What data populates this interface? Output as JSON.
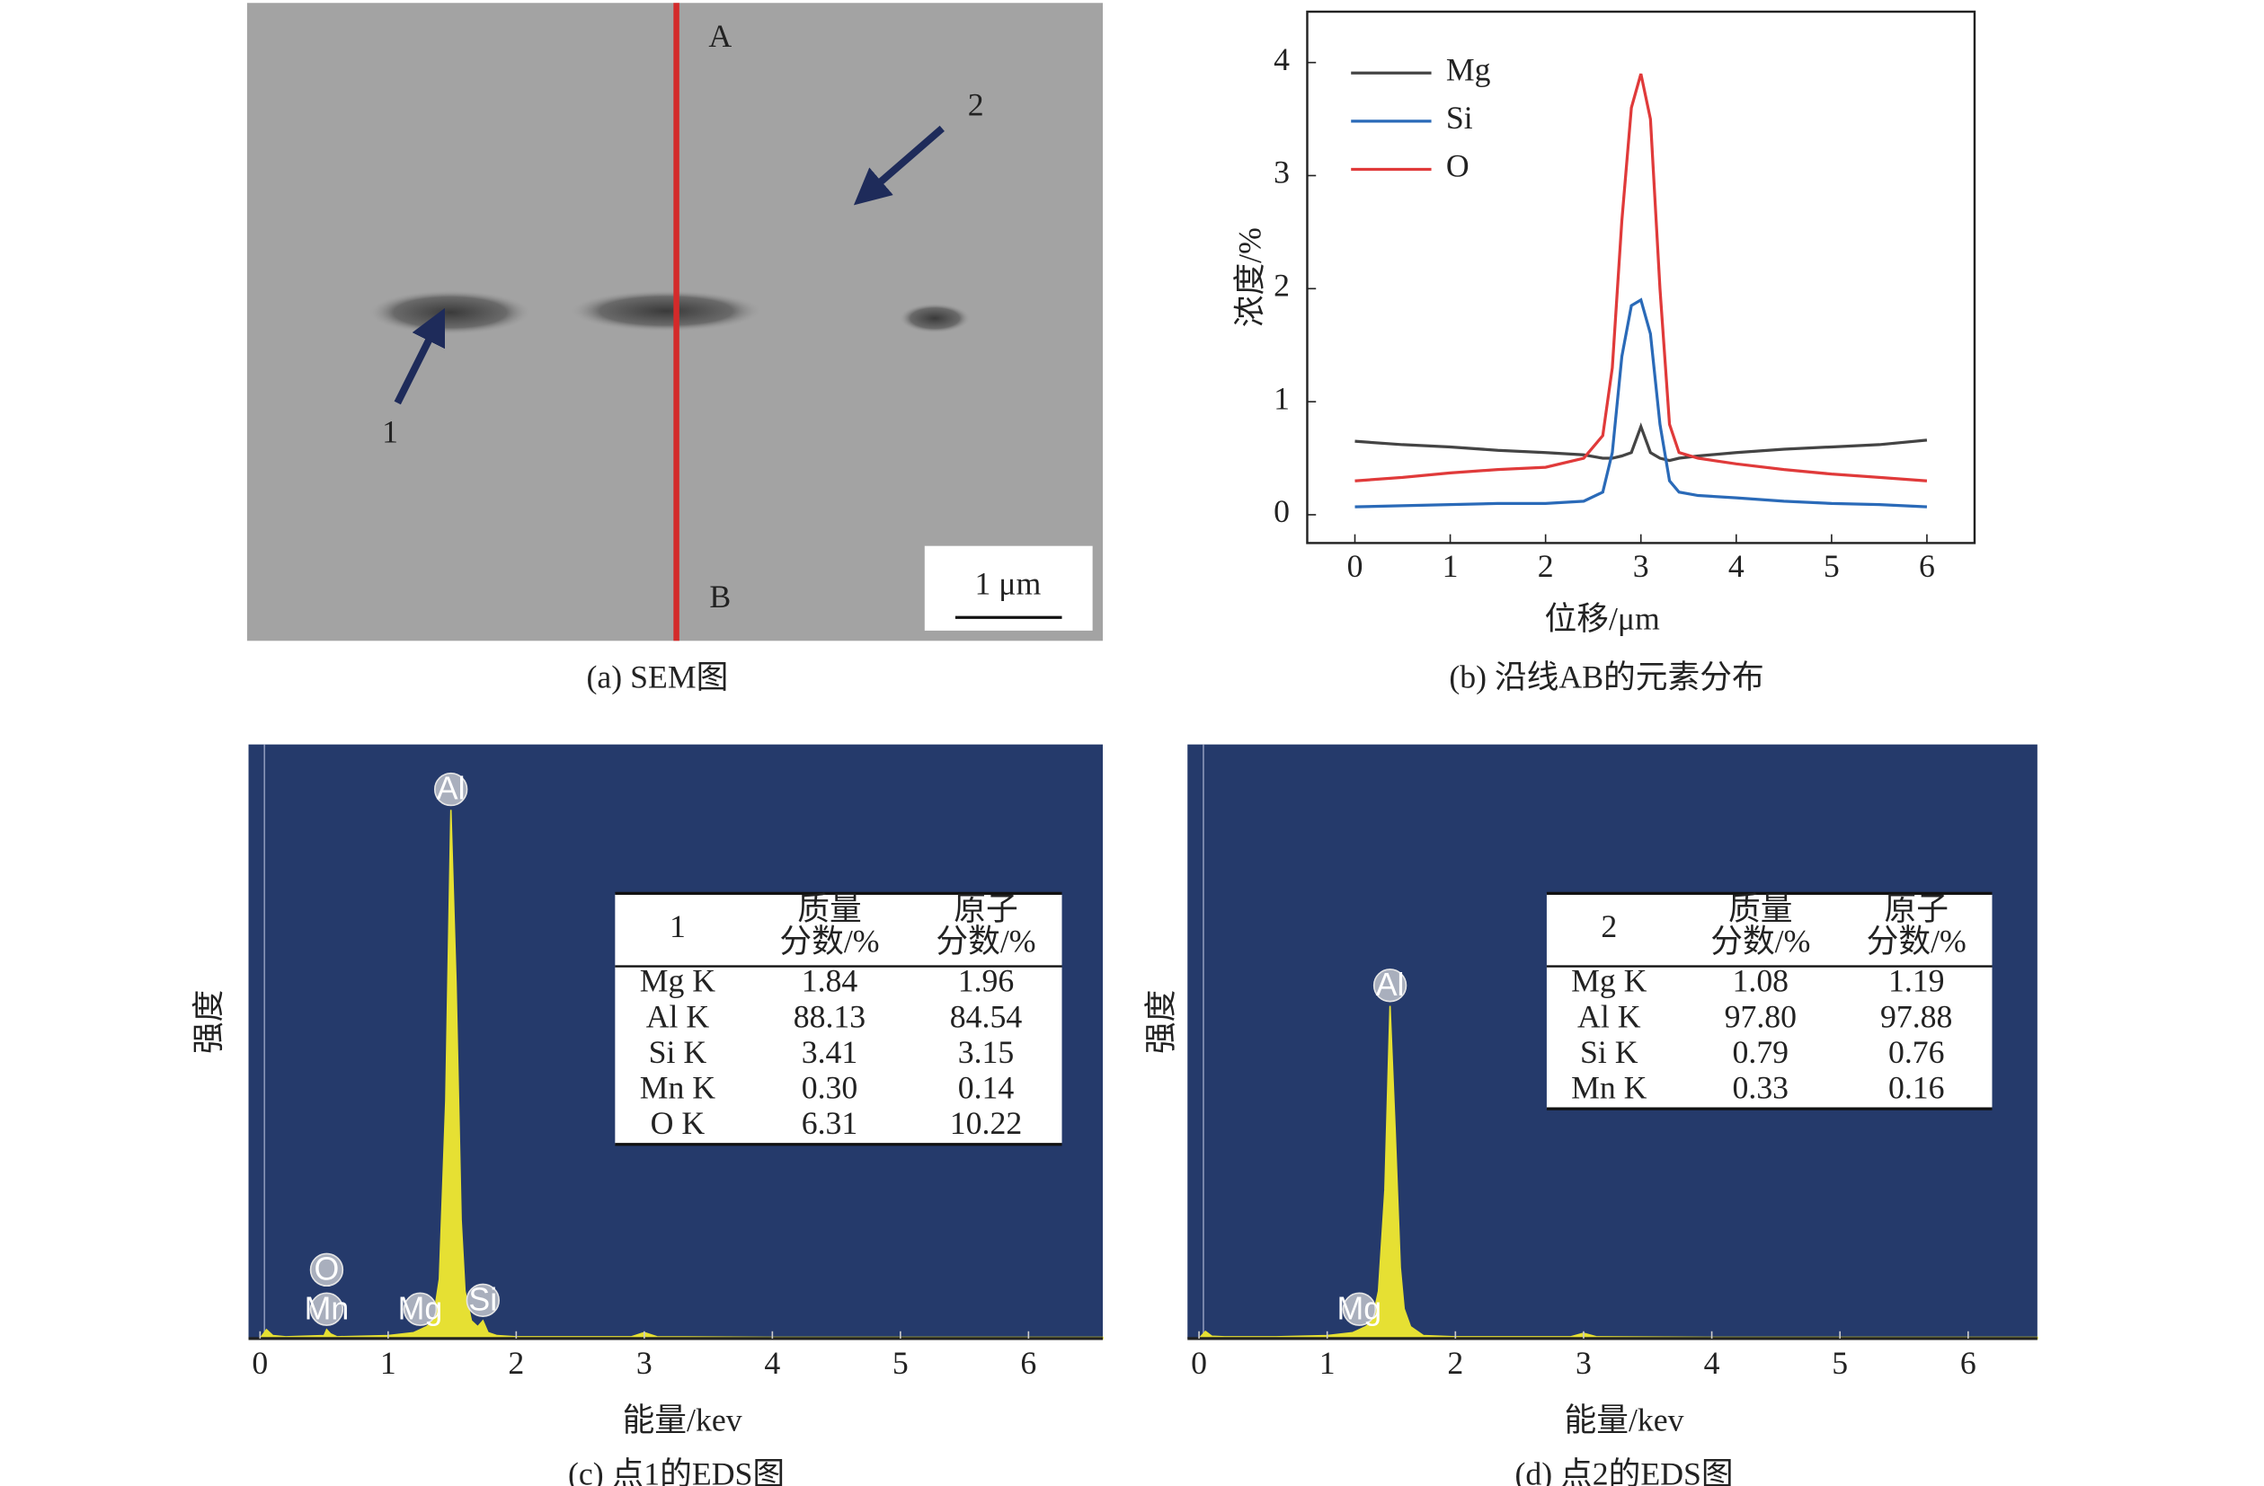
{
  "chart_data": [
    {
      "type": "image",
      "caption": "(a) SEM图",
      "point_labels": [
        "A",
        "B",
        "1",
        "2"
      ],
      "scale_bar": "1 μm"
    },
    {
      "type": "line",
      "caption": "(b) 沿线AB的元素分布",
      "xlabel": "位移/μm",
      "ylabel": "浓度/%",
      "x": [
        0,
        0.5,
        1,
        1.5,
        2,
        2.4,
        2.6,
        2.7,
        2.8,
        2.9,
        3.0,
        3.1,
        3.2,
        3.3,
        3.4,
        3.6,
        4,
        4.5,
        5,
        5.5,
        6
      ],
      "series": [
        {
          "name": "Mg",
          "color": "#444444",
          "values": [
            0.65,
            0.62,
            0.6,
            0.57,
            0.55,
            0.53,
            0.5,
            0.5,
            0.52,
            0.55,
            0.78,
            0.55,
            0.5,
            0.48,
            0.5,
            0.52,
            0.55,
            0.58,
            0.6,
            0.62,
            0.66
          ]
        },
        {
          "name": "Si",
          "color": "#2a6ab8",
          "values": [
            0.07,
            0.08,
            0.09,
            0.1,
            0.1,
            0.12,
            0.2,
            0.55,
            1.4,
            1.85,
            1.9,
            1.6,
            0.8,
            0.3,
            0.2,
            0.17,
            0.15,
            0.12,
            0.1,
            0.09,
            0.07
          ]
        },
        {
          "name": "O",
          "color": "#e03a3a",
          "values": [
            0.3,
            0.33,
            0.37,
            0.4,
            0.42,
            0.5,
            0.7,
            1.3,
            2.6,
            3.6,
            3.9,
            3.5,
            2.0,
            0.8,
            0.55,
            0.5,
            0.45,
            0.4,
            0.36,
            0.33,
            0.3
          ]
        }
      ],
      "xlim": [
        -0.5,
        6.5
      ],
      "ylim": [
        -0.25,
        4.45
      ],
      "xticks": [
        0,
        1,
        2,
        3,
        4,
        5,
        6
      ],
      "yticks": [
        0,
        1,
        2,
        3,
        4
      ],
      "legend": "upper left"
    },
    {
      "type": "spectrum",
      "caption": "(c) 点1的EDS图",
      "xlabel": "能量/kev",
      "ylabel": "强度",
      "x": [
        0,
        0.05,
        0.1,
        0.2,
        0.5,
        0.52,
        0.55,
        0.6,
        1.0,
        1.2,
        1.25,
        1.3,
        1.35,
        1.4,
        1.45,
        1.49,
        1.53,
        1.57,
        1.6,
        1.65,
        1.7,
        1.74,
        1.78,
        1.85,
        2.0,
        2.9,
        3.0,
        3.1,
        4,
        5,
        6,
        6.58
      ],
      "values": [
        0,
        1.5,
        0.5,
        0.3,
        0.5,
        1.5,
        0.8,
        0.3,
        0.5,
        1,
        1.5,
        2,
        3,
        10,
        40,
        89,
        60,
        20,
        8,
        3,
        2,
        3,
        1,
        0.5,
        0.3,
        0.3,
        1,
        0.3,
        0.2,
        0.2,
        0.2,
        0.2
      ],
      "color": "#e6e033",
      "background": "#253a6b",
      "xlim": [
        -0.09,
        6.58
      ],
      "ylim": [
        0,
        100
      ],
      "xticks": [
        0,
        1,
        2,
        3,
        4,
        5,
        6
      ],
      "peaks": [
        {
          "label": "Mn",
          "x": 0.52
        },
        {
          "label": "O",
          "x": 0.52
        },
        {
          "label": "Mg",
          "x": 1.25
        },
        {
          "label": "Al",
          "x": 1.49
        },
        {
          "label": "Si",
          "x": 1.74
        }
      ],
      "table": {
        "header": [
          [
            "1"
          ],
          [
            "质量",
            "分数/%"
          ],
          [
            "原子",
            "分数/%"
          ]
        ],
        "rows": [
          [
            "Mg K",
            "1.84",
            "1.96"
          ],
          [
            "Al K",
            "88.13",
            "84.54"
          ],
          [
            "Si K",
            "3.41",
            "3.15"
          ],
          [
            "Mn K",
            "0.30",
            "0.14"
          ],
          [
            "O K",
            "6.31",
            "10.22"
          ]
        ]
      }
    },
    {
      "type": "spectrum",
      "caption": "(d) 点2的EDS图",
      "xlabel": "能量/kev",
      "ylabel": "强度",
      "x": [
        0,
        0.05,
        0.1,
        0.2,
        0.6,
        1.0,
        1.2,
        1.25,
        1.3,
        1.35,
        1.4,
        1.45,
        1.49,
        1.53,
        1.57,
        1.6,
        1.65,
        1.75,
        2.0,
        2.9,
        3.0,
        3.1,
        4,
        5,
        6,
        6.54
      ],
      "values": [
        0,
        1.2,
        0.4,
        0.3,
        0.3,
        0.5,
        1,
        1.5,
        2,
        3,
        8,
        25,
        56,
        35,
        12,
        5,
        2,
        0.5,
        0.3,
        0.3,
        0.9,
        0.3,
        0.2,
        0.2,
        0.2,
        0.2
      ],
      "color": "#e6e033",
      "background": "#253a6b",
      "xlim": [
        -0.09,
        6.54
      ],
      "ylim": [
        0,
        100
      ],
      "xticks": [
        0,
        1,
        2,
        3,
        4,
        5,
        6
      ],
      "peaks": [
        {
          "label": "Mg",
          "x": 1.25
        },
        {
          "label": "Al",
          "x": 1.49
        }
      ],
      "table": {
        "header": [
          [
            "2"
          ],
          [
            "质量",
            "分数/%"
          ],
          [
            "原子",
            "分数/%"
          ]
        ],
        "rows": [
          [
            "Mg K",
            "1.08",
            "1.19"
          ],
          [
            "Al K",
            "97.80",
            "97.88"
          ],
          [
            "Si K",
            "0.79",
            "0.76"
          ],
          [
            "Mn K",
            "0.33",
            "0.16"
          ]
        ]
      }
    }
  ]
}
